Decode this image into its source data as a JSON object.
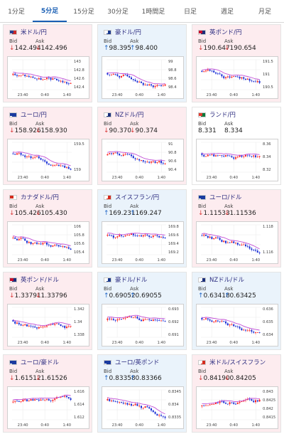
{
  "tabs": [
    "1分足",
    "5分足",
    "15分足",
    "30分足",
    "1時間足",
    "日足",
    "週足",
    "月足"
  ],
  "active_tab": "5分足",
  "bid_label": "Bid",
  "ask_label": "Ask",
  "cards": [
    {
      "name": "米ドル/円",
      "dir": "down",
      "bid": "142.494",
      "ask": "142.496",
      "flag": "us",
      "times": [
        "23:40",
        "0:40",
        "1:40"
      ],
      "ticks": [
        "143",
        "142.8",
        "142.6",
        "142.4"
      ],
      "seed": 3,
      "trend": -0.4
    },
    {
      "name": "豪ドル/円",
      "dir": "up",
      "bid": "98.395",
      "ask": "98.400",
      "flag": "au",
      "times": [
        "23:40",
        "0:40",
        "1:40"
      ],
      "ticks": [
        "99",
        "98.8",
        "98.6",
        "98.4"
      ],
      "seed": 7,
      "trend": -0.3
    },
    {
      "name": "英ポンド/円",
      "dir": "down",
      "bid": "190.647",
      "ask": "190.654",
      "flag": "gb",
      "times": [
        "23:40",
        "0:40",
        "1:40"
      ],
      "ticks": [
        "191.5",
        "191",
        "190.5"
      ],
      "seed": 11,
      "trend": -0.35
    },
    {
      "name": "ユーロ/円",
      "dir": "down",
      "bid": "158.926",
      "ask": "158.930",
      "flag": "eu",
      "times": [
        "23:40",
        "0:40",
        "1:40"
      ],
      "ticks": [
        "159.5",
        "159"
      ],
      "seed": 5,
      "trend": -0.45
    },
    {
      "name": "NZドル/円",
      "dir": "down",
      "bid": "90.370",
      "ask": "90.374",
      "flag": "nz",
      "times": [
        "23:40",
        "0:40",
        "1:40"
      ],
      "ticks": [
        "91",
        "90.8",
        "90.6",
        "90.4"
      ],
      "seed": 13,
      "trend": -0.35
    },
    {
      "name": "ランド/円",
      "dir": "flat",
      "bid": "8.331",
      "ask": "8.334",
      "flag": "za",
      "times": [
        "23:40",
        "0:40",
        "1:40"
      ],
      "ticks": [
        "8.36",
        "8.34",
        "8.32"
      ],
      "seed": 17,
      "trend": -0.2
    },
    {
      "name": "カナダドル/円",
      "dir": "down",
      "bid": "105.426",
      "ask": "105.430",
      "flag": "ca",
      "times": [
        "23:40",
        "0:40",
        "1:40"
      ],
      "ticks": [
        "106",
        "105.8",
        "105.6",
        "105.4"
      ],
      "seed": 19,
      "trend": -0.4
    },
    {
      "name": "スイスフラン/円",
      "dir": "up",
      "bid": "169.231",
      "ask": "169.247",
      "flag": "ch",
      "times": [
        "23:40",
        "0:40",
        "1:40"
      ],
      "ticks": [
        "169.8",
        "169.6",
        "169.4",
        "169.2"
      ],
      "seed": 23,
      "trend": -0.35
    },
    {
      "name": "ユーロ/ドル",
      "dir": "down",
      "bid": "1.11533",
      "ask": "1.11536",
      "flag": "eu",
      "times": [
        "23:40",
        "0:40",
        "1:40"
      ],
      "ticks": [
        "1.118",
        "1.116"
      ],
      "seed": 29,
      "trend": -0.45
    },
    {
      "name": "英ポンド/ドル",
      "dir": "down",
      "bid": "1.33791",
      "ask": "1.33796",
      "flag": "gb",
      "times": [
        "23:40",
        "0:40",
        "1:40"
      ],
      "ticks": [
        "1.342",
        "1.34",
        "1.338"
      ],
      "seed": 31,
      "trend": -0.4
    },
    {
      "name": "豪ドル/ドル",
      "dir": "up",
      "bid": "0.69052",
      "ask": "0.69055",
      "flag": "au",
      "times": [
        "23:40",
        "0:40",
        "1:40"
      ],
      "ticks": [
        "0.693",
        "0.692",
        "0.691"
      ],
      "seed": 37,
      "trend": -0.3
    },
    {
      "name": "NZドル/ドル",
      "dir": "up",
      "bid": "0.63418",
      "ask": "0.63425",
      "flag": "nz",
      "times": [
        "23:40",
        "0:40",
        "1:40"
      ],
      "ticks": [
        "0.636",
        "0.635",
        "0.634"
      ],
      "seed": 41,
      "trend": -0.4
    },
    {
      "name": "ユーロ/豪ドル",
      "dir": "down",
      "bid": "1.61512",
      "ask": "1.61526",
      "flag": "eu",
      "times": [
        "23:40",
        "0:40",
        "1:40"
      ],
      "ticks": [
        "1.616",
        "1.614",
        "1.612"
      ],
      "seed": 43,
      "trend": -0.2
    },
    {
      "name": "ユーロ/英ポンド",
      "dir": "up",
      "bid": "0.83358",
      "ask": "0.83366",
      "flag": "eu",
      "times": [
        "23:40",
        "0:40",
        "1:40"
      ],
      "ticks": [
        "0.8345",
        "0.834",
        "0.8335"
      ],
      "seed": 47,
      "trend": -0.3
    },
    {
      "name": "米ドル/スイスフラン",
      "dir": "down",
      "bid": "0.84190",
      "ask": "0.84205",
      "flag": "ch",
      "times": [
        "23:40",
        "0:40",
        "1:40"
      ],
      "ticks": [
        "0.843",
        "0.8425",
        "0.842",
        "0.8415"
      ],
      "seed": 53,
      "trend": 0.1
    }
  ],
  "colors": {
    "up": "#1f66c6",
    "down": "#d93a3a",
    "candle_up": "#ff1f1f",
    "candle_down": "#1a2fd6",
    "ma": "#c24fd6",
    "card_up_bg": "#eaf3fb",
    "card_down_bg": "#fdecef"
  },
  "flags": {
    "us": {
      "a": "#2a3f8f",
      "b": "#cc2a2a"
    },
    "au": {
      "a": "#ffffff",
      "b": "#1b3b8f"
    },
    "gb": {
      "a": "#c8102e",
      "b": "#1d2d7a"
    },
    "eu": {
      "a": "#1b3b9f",
      "b": "#1b3b9f"
    },
    "nz": {
      "a": "#ffffff",
      "b": "#1b2f7a"
    },
    "za": {
      "a": "#e03c31",
      "b": "#0a7a3b"
    },
    "ca": {
      "a": "#d52b1e",
      "b": "#ffffff"
    },
    "ch": {
      "a": "#ffffff",
      "b": "#d52b1e"
    }
  }
}
